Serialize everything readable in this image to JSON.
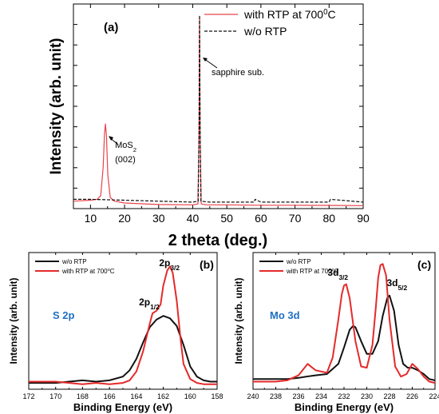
{
  "chart_data": [
    {
      "type": "line",
      "panel_label": "(a)",
      "xlabel": "2 theta (deg.)",
      "ylabel": "Intensity (arb. unit)",
      "xlim": [
        5,
        90
      ],
      "xticks": [
        10,
        20,
        30,
        40,
        50,
        60,
        70,
        80,
        90
      ],
      "legend_position": "top-right",
      "annotations": [
        {
          "text": "sapphire sub.",
          "x": 42
        },
        {
          "text_main": "MoS",
          "text_sub": "2",
          "text_line2": "(002)",
          "x": 14.4
        }
      ],
      "series": [
        {
          "name": "with RTP at 700",
          "name_sup": "0",
          "name_suffix": "C",
          "color": "#e8434b",
          "style": "solid",
          "x": [
            5,
            10,
            12,
            13,
            13.7,
            14.1,
            14.4,
            14.7,
            15.1,
            15.8,
            17,
            20,
            30,
            40,
            41.5,
            41.85,
            42,
            42.15,
            42.5,
            44,
            50,
            60,
            70,
            80,
            90
          ],
          "y": [
            0.04,
            0.045,
            0.05,
            0.07,
            0.22,
            0.4,
            0.455,
            0.39,
            0.18,
            0.06,
            0.04,
            0.03,
            0.022,
            0.02,
            0.025,
            0.4,
            1.03,
            0.4,
            0.025,
            0.02,
            0.02,
            0.018,
            0.018,
            0.017,
            0.016
          ]
        },
        {
          "name": "w/o RTP",
          "color": "#111111",
          "style": "dashed",
          "x": [
            5,
            10,
            20,
            30,
            40,
            41.6,
            41.85,
            42,
            42.15,
            42.4,
            45,
            58,
            58.3,
            60,
            70,
            80,
            80.4,
            90
          ],
          "y": [
            0.05,
            0.05,
            0.045,
            0.04,
            0.035,
            0.04,
            0.45,
            1.04,
            0.45,
            0.04,
            0.035,
            0.035,
            0.05,
            0.035,
            0.035,
            0.035,
            0.05,
            0.035
          ]
        }
      ]
    },
    {
      "type": "line",
      "panel_label": "(b)",
      "inset_label": "S 2p",
      "xlabel": "Binding Energy (eV)",
      "ylabel": "Intensity (arb. unit)",
      "xlim": [
        172,
        158
      ],
      "xticks": [
        172,
        170,
        168,
        166,
        164,
        162,
        160,
        158
      ],
      "legend_position": "top-left",
      "annotations": [
        {
          "text_main": "2p",
          "text_sub": "1/2",
          "x": 162.8
        },
        {
          "text_main": "2p",
          "text_sub": "3/2",
          "x": 161.6
        }
      ],
      "series": [
        {
          "name": "w/o RTP",
          "color": "#111111",
          "x": [
            172,
            170,
            169,
            168,
            167,
            166,
            165,
            164.5,
            164,
            163.5,
            163,
            162.5,
            162,
            161.5,
            161,
            160.5,
            160,
            159.5,
            159,
            158.5,
            158
          ],
          "y": [
            0.05,
            0.05,
            0.06,
            0.07,
            0.06,
            0.07,
            0.1,
            0.15,
            0.24,
            0.37,
            0.49,
            0.55,
            0.58,
            0.56,
            0.5,
            0.35,
            0.18,
            0.1,
            0.07,
            0.06,
            0.06
          ]
        },
        {
          "name": "with RTP at 700",
          "name_sup": "o",
          "name_suffix": "C",
          "color": "#e52a2a",
          "x": [
            172,
            170,
            169,
            168,
            167,
            166,
            165,
            164.5,
            164,
            163.5,
            163,
            162.8,
            162.5,
            162.2,
            162,
            161.7,
            161.5,
            161.3,
            161,
            160.7,
            160.5,
            160,
            159.5,
            159,
            158.5,
            158
          ],
          "y": [
            0.06,
            0.06,
            0.05,
            0.04,
            0.05,
            0.04,
            0.05,
            0.07,
            0.14,
            0.3,
            0.52,
            0.6,
            0.62,
            0.67,
            0.82,
            0.94,
            0.97,
            0.92,
            0.7,
            0.38,
            0.2,
            0.08,
            0.05,
            0.04,
            0.04,
            0.04
          ]
        }
      ]
    },
    {
      "type": "line",
      "panel_label": "(c)",
      "inset_label": "Mo 3d",
      "xlabel": "Binding Energy (eV)",
      "ylabel": "Intensity (arb. unit)",
      "xlim": [
        240,
        224
      ],
      "xticks": [
        240,
        238,
        236,
        234,
        232,
        230,
        228,
        226,
        224
      ],
      "legend_position": "top-left",
      "annotations": [
        {
          "text_main": "3d",
          "text_sub": "3/2",
          "x": 231.9
        },
        {
          "text_main": "3d",
          "text_sub": "5/2",
          "x": 228.6
        }
      ],
      "series": [
        {
          "name": "w/o RTP",
          "color": "#111111",
          "x": [
            240,
            238,
            237,
            236,
            235.3,
            234.5,
            233.5,
            232.5,
            232,
            231.5,
            231.2,
            231,
            230.5,
            230,
            229.5,
            229,
            228.6,
            228.2,
            228,
            227.6,
            227.2,
            226.8,
            226.4,
            226,
            225.5,
            225,
            224.5,
            224
          ],
          "y": [
            0.08,
            0.08,
            0.08,
            0.09,
            0.1,
            0.11,
            0.12,
            0.2,
            0.33,
            0.47,
            0.5,
            0.49,
            0.38,
            0.28,
            0.28,
            0.38,
            0.58,
            0.72,
            0.74,
            0.62,
            0.35,
            0.2,
            0.17,
            0.17,
            0.15,
            0.12,
            0.08,
            0.07
          ]
        },
        {
          "name": "with RTP at 700",
          "name_sup": "o",
          "name_suffix": "C",
          "color": "#e52a2a",
          "x": [
            240,
            238,
            237,
            236,
            235.2,
            234.5,
            233.5,
            233,
            232.5,
            232.2,
            232,
            231.8,
            231.5,
            231,
            230.5,
            230,
            229.5,
            229.2,
            229,
            228.8,
            228.6,
            228.3,
            228,
            227.5,
            227,
            226.5,
            226,
            225.5,
            225,
            224.5,
            224
          ],
          "y": [
            0.06,
            0.06,
            0.07,
            0.11,
            0.2,
            0.15,
            0.13,
            0.25,
            0.55,
            0.75,
            0.82,
            0.83,
            0.72,
            0.38,
            0.18,
            0.17,
            0.35,
            0.65,
            0.88,
            0.98,
            0.99,
            0.9,
            0.55,
            0.18,
            0.1,
            0.12,
            0.2,
            0.16,
            0.1,
            0.06,
            0.05
          ]
        }
      ]
    }
  ]
}
